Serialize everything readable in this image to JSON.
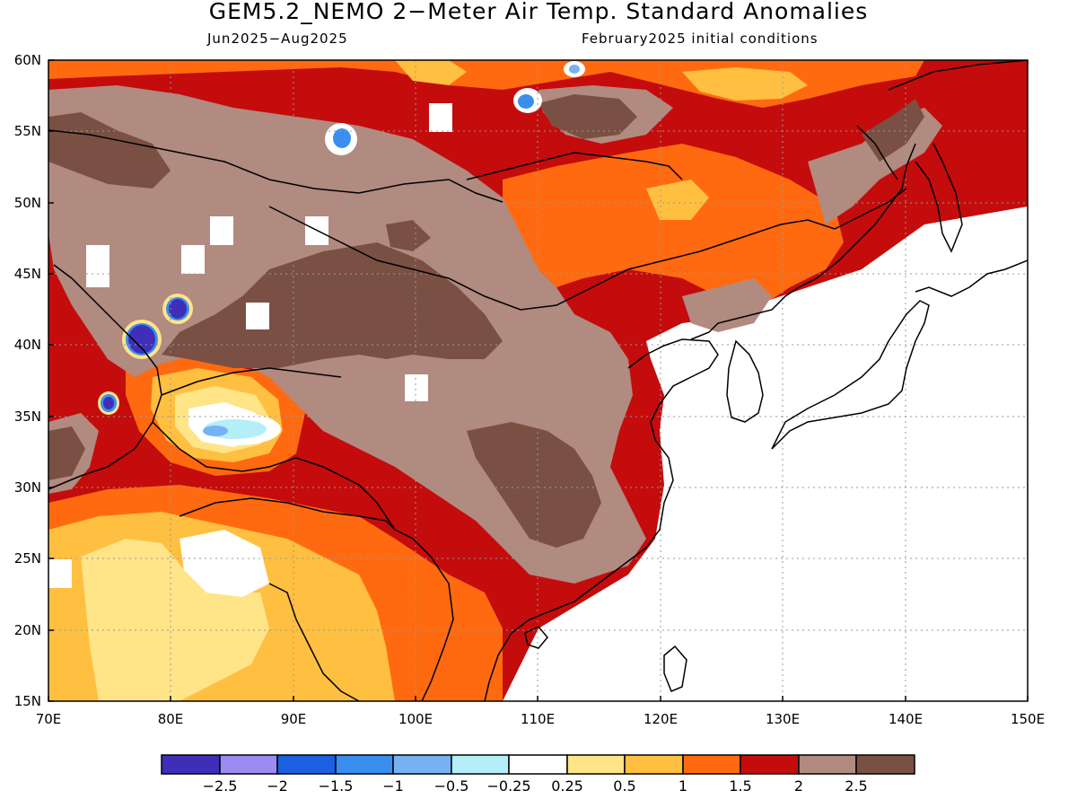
{
  "title": "GEM5.2_NEMO 2−Meter Air Temp. Standard Anomalies",
  "valid_period": "Jun2025−Aug2025",
  "initial_conditions": "February2025 initial conditions",
  "lat_ticks": [
    "60N",
    "55N",
    "50N",
    "45N",
    "40N",
    "35N",
    "30N",
    "25N",
    "20N",
    "15N"
  ],
  "lon_ticks": [
    "70E",
    "80E",
    "90E",
    "100E",
    "110E",
    "120E",
    "130E",
    "140E",
    "150E"
  ],
  "colorbar": {
    "colors": [
      "#3f2fb8",
      "#9a8cf0",
      "#1c5fe0",
      "#3a8ef0",
      "#76b2f2",
      "#b4eef8",
      "#ffffff",
      "#ffe488",
      "#ffbf40",
      "#ff6a10",
      "#c40c0c",
      "#b18a80",
      "#7a5044"
    ],
    "labels": [
      "−2.5",
      "−2",
      "−1.5",
      "−1",
      "−0.5",
      "−0.25",
      "0.25",
      "0.5",
      "1",
      "1.5",
      "2",
      "2.5"
    ]
  }
}
